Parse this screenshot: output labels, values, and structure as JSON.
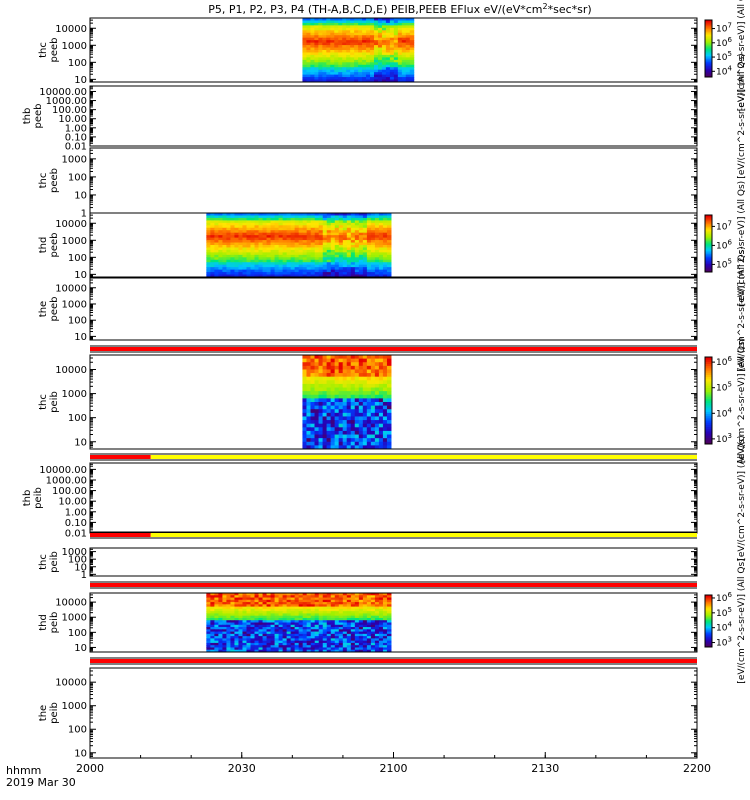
{
  "figure": {
    "title": "P5, P1, P2, P3, P4 (TH-A,B,C,D,E) PEIB,PEEB EFlux eV/(eV*cm",
    "title_sup": "2",
    "title_tail": "*sec*sr)",
    "xaxis": {
      "label_line1": "hhmm",
      "label_line2": "2019 Mar 30",
      "range_minutes": [
        0,
        120
      ],
      "ticks": [
        {
          "minute": 0,
          "label": "2000"
        },
        {
          "minute": 30,
          "label": "2030"
        },
        {
          "minute": 60,
          "label": "2100"
        },
        {
          "minute": 90,
          "label": "2130"
        },
        {
          "minute": 120,
          "label": "2200"
        }
      ]
    }
  },
  "colors": {
    "bar_red": "#ff0000",
    "bar_yellow": "#ffff00",
    "frame": "#000000"
  },
  "chart_data": {
    "type": "heatmap",
    "x_unit": "minutes after 2000 UT",
    "panels": [
      {
        "id": "thc-peeb",
        "ylabel": [
          "thc",
          "peeb"
        ],
        "yscale": "log",
        "yrange": [
          7,
          40000
        ],
        "ytick_values": [
          10,
          100,
          1000,
          10000
        ],
        "ytick_labels": [
          "10",
          "100",
          "1000",
          "10000"
        ],
        "data_interval": [
          42,
          64
        ],
        "colormap_shape": "electron",
        "colorbar": {
          "min_exp": 3.6,
          "max_exp": 7.6,
          "ticks": [
            {
              "exp": 4,
              "label": "10",
              "sup": "4"
            },
            {
              "exp": 5,
              "label": "10",
              "sup": "5"
            },
            {
              "exp": 6,
              "label": "10",
              "sup": "6"
            },
            {
              "exp": 7,
              "label": "10",
              "sup": "7"
            }
          ],
          "label": "[eV/(cm^2-s-sr-eV)] (All Qs)"
        }
      },
      {
        "id": "thb-peeb",
        "ylabel": [
          "thb",
          "peeb"
        ],
        "yscale": "log",
        "yrange": [
          0.01,
          40000
        ],
        "ytick_values": [
          0.01,
          0.1,
          1,
          10,
          100,
          1000,
          10000
        ],
        "ytick_labels": [
          "0.01",
          "0.10",
          "1.00",
          "10.00",
          "100.00",
          "1000.00",
          "10000.00"
        ],
        "data_interval": null,
        "colorbar": null,
        "side_label": "[eV/(cm^2-s-sr-eV)] (All Qs)"
      },
      {
        "id": "thc-peeb-2",
        "ylabel": [
          "thc",
          "peeb"
        ],
        "yscale": "log",
        "yrange": [
          1,
          4000
        ],
        "ytick_values": [
          1,
          10,
          100,
          1000
        ],
        "ytick_labels": [
          "1",
          "10",
          "100",
          "1000"
        ],
        "data_interval": null,
        "colorbar": null
      },
      {
        "id": "thd-peeb",
        "ylabel": [
          "thd",
          "peeb"
        ],
        "yscale": "log",
        "yrange": [
          7,
          40000
        ],
        "ytick_values": [
          10,
          100,
          1000,
          10000
        ],
        "ytick_labels": [
          "10",
          "100",
          "1000",
          "10000"
        ],
        "data_interval": [
          23,
          59.5
        ],
        "colormap_shape": "electron",
        "colorbar": {
          "min_exp": 4.6,
          "max_exp": 7.6,
          "ticks": [
            {
              "exp": 5,
              "label": "10",
              "sup": "5"
            },
            {
              "exp": 6,
              "label": "10",
              "sup": "6"
            },
            {
              "exp": 7,
              "label": "10",
              "sup": "7"
            }
          ],
          "label": "[eV/(cm^2-s-sr-eV)] (All Qs)"
        }
      },
      {
        "id": "the-peeb",
        "ylabel": [
          "the",
          "peeb"
        ],
        "yscale": "log",
        "yrange": [
          6,
          40000
        ],
        "ytick_values": [
          10,
          100,
          1000,
          10000
        ],
        "ytick_labels": [
          "10",
          "100",
          "1000",
          "10000"
        ],
        "data_interval": null,
        "colorbar": null,
        "side_label": "[eV/(cm^2-s-sr-eV)] (All Qs)"
      },
      {
        "id": "thc-peib",
        "ylabel": [
          "thc",
          "peib"
        ],
        "yscale": "log",
        "yrange": [
          5,
          40000
        ],
        "ytick_values": [
          10,
          100,
          1000,
          10000
        ],
        "ytick_labels": [
          "10",
          "100",
          "1000",
          "10000"
        ],
        "data_interval": [
          42,
          59.5
        ],
        "colormap_shape": "ion",
        "colorbar": {
          "min_exp": 2.8,
          "max_exp": 6.2,
          "ticks": [
            {
              "exp": 3,
              "label": "10",
              "sup": "3"
            },
            {
              "exp": 4,
              "label": "10",
              "sup": "4"
            },
            {
              "exp": 5,
              "label": "10",
              "sup": "5"
            },
            {
              "exp": 6,
              "label": "10",
              "sup": "6"
            }
          ],
          "label": "[eV/(cm^2-s-sr-eV)] (All Qs)"
        }
      },
      {
        "id": "thb-peib",
        "ylabel": [
          "thb",
          "peib"
        ],
        "yscale": "log",
        "yrange": [
          0.01,
          40000
        ],
        "ytick_values": [
          0.01,
          0.1,
          1,
          10,
          100,
          1000,
          10000
        ],
        "ytick_labels": [
          "0.01",
          "0.10",
          "1.00",
          "10.00",
          "100.00",
          "1000.00",
          "10000.00"
        ],
        "data_interval": null,
        "colorbar": null,
        "side_label": "[eV/(cm^2-s-sr-eV)] (All Qs)"
      },
      {
        "id": "thc-peib-2",
        "ylabel": [
          "thc",
          "peib"
        ],
        "yscale": "log",
        "yrange": [
          0.6,
          3000
        ],
        "ytick_values": [
          1,
          10,
          100,
          1000
        ],
        "ytick_labels": [
          "1",
          "10",
          "100",
          "1000"
        ],
        "data_interval": null,
        "colorbar": null
      },
      {
        "id": "thd-peib",
        "ylabel": [
          "thd",
          "peib"
        ],
        "yscale": "log",
        "yrange": [
          5,
          40000
        ],
        "ytick_values": [
          10,
          100,
          1000,
          10000
        ],
        "ytick_labels": [
          "10",
          "100",
          "1000",
          "10000"
        ],
        "data_interval": [
          23,
          59.5
        ],
        "colormap_shape": "ion",
        "colorbar": {
          "min_exp": 2.7,
          "max_exp": 6.2,
          "ticks": [
            {
              "exp": 3,
              "label": "10",
              "sup": "3"
            },
            {
              "exp": 4,
              "label": "10",
              "sup": "4"
            },
            {
              "exp": 5,
              "label": "10",
              "sup": "5"
            },
            {
              "exp": 6,
              "label": "10",
              "sup": "6"
            }
          ],
          "label": "[eV/(cm^2-s-sr-eV)] (All Qs)"
        }
      },
      {
        "id": "the-peib",
        "ylabel": [
          "the",
          "peib"
        ],
        "yscale": "log",
        "yrange": [
          6,
          40000
        ],
        "ytick_values": [
          10,
          100,
          1000,
          10000
        ],
        "ytick_labels": [
          "10",
          "100",
          "1000",
          "10000"
        ],
        "data_interval": null,
        "colorbar": null
      }
    ],
    "flag_bars": [
      {
        "below_panel": "the-peeb",
        "segments": [
          {
            "from": 0,
            "to": 120,
            "color": "red"
          }
        ]
      },
      {
        "below_panel": "thc-peib",
        "segments": [
          {
            "from": 0,
            "to": 12,
            "color": "red"
          },
          {
            "from": 12,
            "to": 120,
            "color": "yellow"
          }
        ]
      },
      {
        "below_panel": "thb-peib",
        "segments": [
          {
            "from": 0,
            "to": 12,
            "color": "red"
          },
          {
            "from": 12,
            "to": 120,
            "color": "yellow"
          }
        ]
      },
      {
        "below_panel": "thc-peib-2",
        "segments": [
          {
            "from": 0,
            "to": 120,
            "color": "red"
          }
        ]
      },
      {
        "below_panel": "thd-peib",
        "segments": [
          {
            "from": 0,
            "to": 120,
            "color": "red"
          }
        ]
      }
    ]
  }
}
